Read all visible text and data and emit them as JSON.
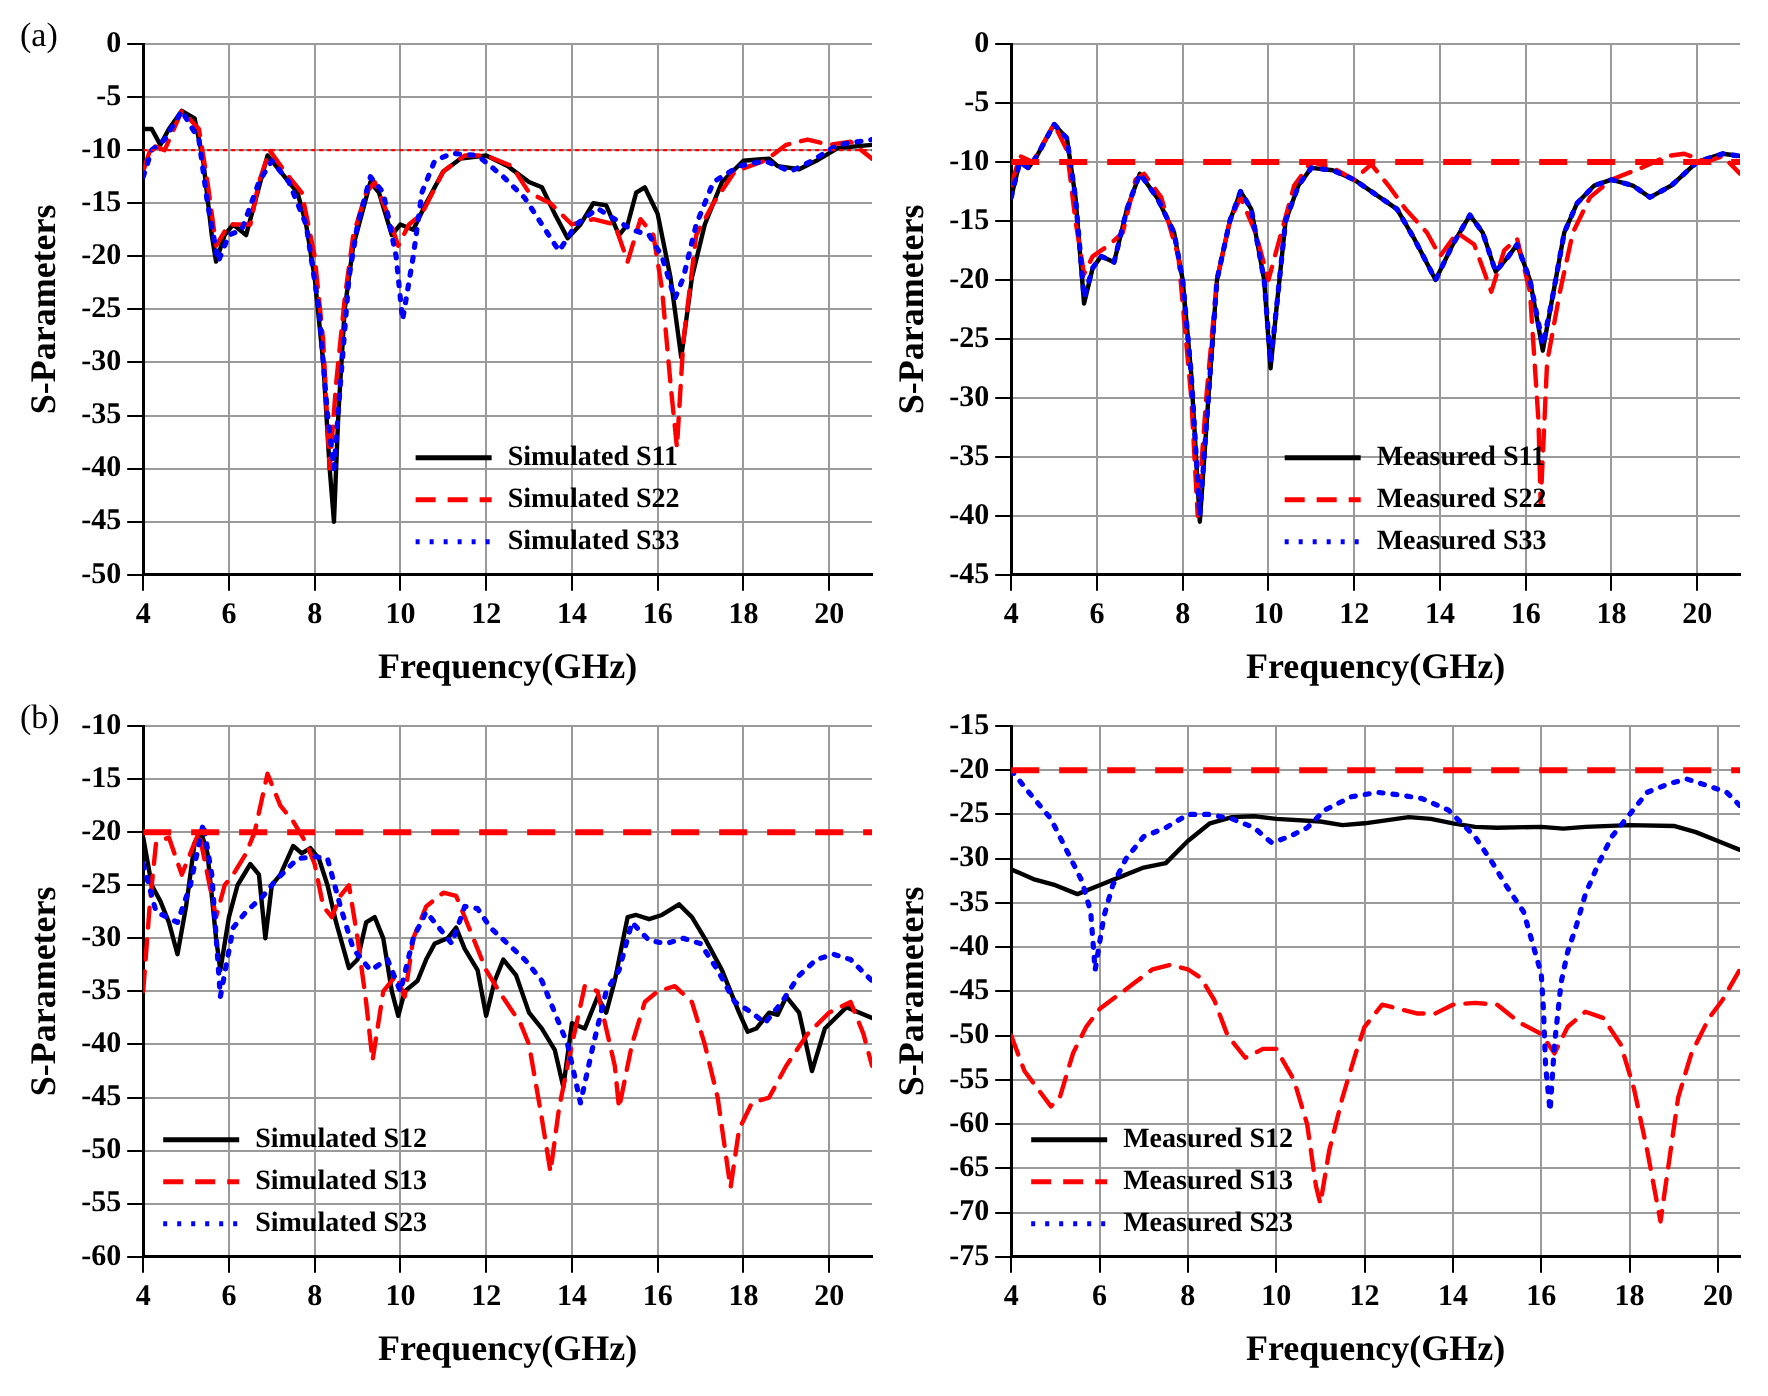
{
  "chart_data": [
    {
      "type": "line",
      "xlabel": "Frequency(GHz)",
      "ylabel": "S-Parameters",
      "annotations": [
        "(a)"
      ],
      "xlim": [
        4,
        21
      ],
      "xticks": [
        4,
        6,
        8,
        10,
        12,
        14,
        16,
        18,
        20
      ],
      "ylim": [
        -50,
        0
      ],
      "yticks": [
        -50,
        -45,
        -40,
        -35,
        -30,
        -25,
        -20,
        -15,
        -10,
        -5,
        0
      ],
      "grid": true,
      "legend": "bottom",
      "marker": "none",
      "ref_lines": [
        {
          "axis": "y",
          "value": -10,
          "color": "#ff0000",
          "line_style": "dotted"
        }
      ],
      "series": [
        {
          "name": "Simulated S11",
          "color": "#000000",
          "line_style": "solid",
          "x": [
            4,
            4.2,
            4.4,
            4.6,
            4.9,
            5.2,
            5.4,
            5.6,
            5.7,
            5.9,
            6.1,
            6.4,
            6.6,
            6.9,
            7.1,
            7.4,
            7.6,
            7.8,
            8.0,
            8.2,
            8.35,
            8.45,
            8.55,
            8.7,
            8.9,
            9.1,
            9.3,
            9.5,
            9.8,
            10.0,
            10.3,
            10.6,
            11.0,
            11.4,
            12.0,
            12.5,
            13.0,
            13.3,
            13.6,
            13.9,
            14.2,
            14.5,
            14.8,
            15.1,
            15.3,
            15.5,
            15.7,
            16.0,
            16.3,
            16.55,
            16.8,
            17.1,
            17.5,
            18.0,
            18.6,
            18.8,
            19.3,
            19.7,
            20.2,
            21
          ],
          "values": [
            -8,
            -8,
            -9.5,
            -8,
            -6.3,
            -7,
            -11,
            -18,
            -20.5,
            -18,
            -17,
            -18,
            -15,
            -10.5,
            -11.5,
            -13,
            -14,
            -17,
            -22,
            -30,
            -40,
            -45,
            -35,
            -25,
            -19,
            -16,
            -13,
            -14,
            -18,
            -17,
            -17.5,
            -15,
            -12,
            -10.8,
            -10.5,
            -11.5,
            -13,
            -13.5,
            -16,
            -18.3,
            -17,
            -15,
            -15.2,
            -18,
            -17,
            -14,
            -13.5,
            -16,
            -22,
            -29.5,
            -22,
            -17,
            -13,
            -11,
            -10.8,
            -11.5,
            -11.8,
            -11,
            -9.8,
            -9.5
          ]
        },
        {
          "name": "Simulated S22",
          "color": "#ff0000",
          "line_style": "dashed",
          "x": [
            4,
            4.2,
            4.5,
            4.9,
            5.3,
            5.5,
            5.7,
            6.0,
            6.2,
            6.5,
            6.7,
            6.95,
            7.3,
            7.7,
            8.0,
            8.2,
            8.35,
            8.5,
            8.7,
            8.9,
            9.2,
            9.4,
            9.7,
            9.95,
            10.2,
            10.5,
            11,
            11.5,
            12.0,
            12.6,
            13.0,
            13.5,
            14.0,
            14.5,
            15.0,
            15.3,
            15.6,
            15.9,
            16.1,
            16.3,
            16.45,
            16.6,
            16.9,
            17.3,
            17.8,
            18.5,
            19.0,
            19.5,
            20,
            20.5,
            21
          ],
          "values": [
            -12,
            -9.5,
            -10,
            -6.3,
            -8,
            -13,
            -19,
            -17,
            -17,
            -17,
            -13,
            -10,
            -12,
            -14,
            -20,
            -28,
            -40,
            -32,
            -24,
            -18,
            -14,
            -13,
            -16,
            -19,
            -17,
            -16,
            -12,
            -10.5,
            -10.5,
            -11.5,
            -14,
            -15,
            -17,
            -16.5,
            -17,
            -20.5,
            -16.5,
            -18,
            -23,
            -32,
            -38,
            -28,
            -18,
            -15,
            -12,
            -11,
            -9.5,
            -9,
            -9.5,
            -9.2,
            -10.8
          ]
        },
        {
          "name": "Simulated S33",
          "color": "#0000ff",
          "line_style": "dotted",
          "x": [
            4,
            4.2,
            4.5,
            4.9,
            5.3,
            5.5,
            5.75,
            6.0,
            6.3,
            6.7,
            7.0,
            7.4,
            7.8,
            8.1,
            8.3,
            8.45,
            8.6,
            8.8,
            9.0,
            9.3,
            9.6,
            9.9,
            10.05,
            10.3,
            10.5,
            10.8,
            11.2,
            11.8,
            12.4,
            12.9,
            13.3,
            13.7,
            14.1,
            14.6,
            15.0,
            15.4,
            15.8,
            16.1,
            16.4,
            16.6,
            16.9,
            17.3,
            17.9,
            18.5,
            19.1,
            19.6,
            20.2,
            21
          ],
          "values": [
            -12.5,
            -10,
            -9,
            -6.3,
            -9,
            -15,
            -20.5,
            -18,
            -17.5,
            -13,
            -11,
            -13,
            -17,
            -25,
            -35,
            -40,
            -32,
            -22,
            -17,
            -12.5,
            -14,
            -20,
            -26,
            -20,
            -14,
            -11,
            -10.3,
            -10.5,
            -12.5,
            -14.5,
            -17,
            -19.5,
            -17,
            -15.5,
            -16.5,
            -17.5,
            -18,
            -20,
            -24,
            -22,
            -17,
            -13,
            -11.5,
            -11,
            -12,
            -11,
            -9.5,
            -9
          ]
        }
      ]
    },
    {
      "type": "line",
      "xlabel": "Frequency(GHz)",
      "ylabel": "S-Parameters",
      "xlim": [
        4,
        21
      ],
      "xticks": [
        4,
        6,
        8,
        10,
        12,
        14,
        16,
        18,
        20
      ],
      "ylim": [
        -45,
        0
      ],
      "yticks": [
        -45,
        -40,
        -35,
        -30,
        -25,
        -20,
        -15,
        -10,
        -5,
        0
      ],
      "grid": true,
      "legend": "bottom",
      "marker": "none",
      "ref_lines": [
        {
          "axis": "y",
          "value": -10,
          "color": "#ff0000",
          "line_style": "dashed"
        }
      ],
      "series": [
        {
          "name": "Measured S11",
          "color": "#000000",
          "line_style": "solid",
          "x": [
            4,
            4.2,
            4.4,
            4.6,
            5.0,
            5.3,
            5.5,
            5.7,
            5.9,
            6.1,
            6.4,
            6.7,
            7.0,
            7.4,
            7.8,
            8.0,
            8.2,
            8.4,
            8.6,
            8.8,
            9.1,
            9.35,
            9.6,
            9.9,
            10.05,
            10.2,
            10.4,
            10.7,
            11.0,
            11.5,
            12.0,
            12.6,
            13.0,
            13.4,
            13.9,
            14.3,
            14.7,
            15.0,
            15.3,
            15.6,
            15.8,
            16.1,
            16.4,
            16.6,
            16.9,
            17.2,
            17.6,
            18.0,
            18.5,
            18.9,
            19.4,
            20.0,
            20.6,
            21
          ],
          "values": [
            -13,
            -10,
            -10.5,
            -9.5,
            -6.8,
            -8,
            -13,
            -22,
            -19,
            -18,
            -18.5,
            -14,
            -11,
            -13,
            -16,
            -20,
            -28,
            -40.5,
            -30,
            -20,
            -15,
            -12.5,
            -14,
            -20,
            -27.5,
            -22,
            -15,
            -12,
            -10.5,
            -10.7,
            -11.5,
            -13,
            -14,
            -16.5,
            -20,
            -17,
            -14.5,
            -16,
            -19.3,
            -18,
            -17,
            -20,
            -26,
            -22,
            -16,
            -13.5,
            -12,
            -11.5,
            -12,
            -13,
            -12,
            -10,
            -9.3,
            -9.5
          ]
        },
        {
          "name": "Measured S22",
          "color": "#ff0000",
          "line_style": "dashed",
          "x": [
            4,
            4.2,
            4.5,
            5.0,
            5.3,
            5.5,
            5.7,
            5.9,
            6.3,
            6.6,
            6.9,
            7.1,
            7.5,
            7.9,
            8.2,
            8.35,
            8.55,
            8.8,
            9.1,
            9.35,
            9.7,
            10.0,
            10.3,
            10.6,
            11.0,
            11.5,
            12.0,
            12.4,
            12.8,
            13.2,
            13.7,
            14.0,
            14.4,
            14.8,
            15.2,
            15.5,
            15.8,
            16.1,
            16.3,
            16.35,
            16.5,
            16.8,
            17.1,
            17.5,
            18.0,
            18.7,
            19.3,
            19.7,
            20.2,
            20.6,
            21
          ],
          "values": [
            -12,
            -9.5,
            -10,
            -6.8,
            -9,
            -15,
            -19.5,
            -18,
            -17,
            -16,
            -11.5,
            -11,
            -13,
            -18,
            -30,
            -40,
            -30,
            -20,
            -15,
            -13,
            -16,
            -20,
            -16,
            -12,
            -10,
            -10.5,
            -11.5,
            -10.2,
            -12,
            -14,
            -16,
            -18,
            -16,
            -17,
            -21,
            -17.5,
            -16.5,
            -21,
            -32,
            -39,
            -27,
            -21,
            -16,
            -13,
            -11.5,
            -10.5,
            -9.5,
            -9.3,
            -10,
            -9.5,
            -11
          ]
        },
        {
          "name": "Measured S33",
          "color": "#0000ff",
          "line_style": "dotted",
          "x": [
            4,
            4.2,
            4.4,
            4.6,
            5.0,
            5.3,
            5.5,
            5.7,
            5.9,
            6.1,
            6.4,
            6.7,
            7.0,
            7.4,
            7.8,
            8.0,
            8.2,
            8.4,
            8.6,
            8.8,
            9.1,
            9.35,
            9.6,
            9.9,
            10.05,
            10.2,
            10.4,
            10.7,
            11.0,
            11.5,
            12.0,
            12.6,
            13.0,
            13.4,
            13.9,
            14.3,
            14.7,
            15.0,
            15.3,
            15.6,
            15.8,
            16.1,
            16.4,
            16.6,
            16.9,
            17.2,
            17.6,
            18.0,
            18.5,
            18.9,
            19.4,
            20.0,
            20.6,
            21
          ],
          "values": [
            -13,
            -10,
            -10.5,
            -9.5,
            -6.8,
            -8,
            -13,
            -21.5,
            -19,
            -18,
            -18.5,
            -14,
            -11,
            -13,
            -16,
            -20,
            -28,
            -40,
            -30,
            -20,
            -15,
            -12.5,
            -14,
            -20,
            -27,
            -22,
            -15,
            -12,
            -10.5,
            -10.7,
            -11.5,
            -13,
            -14,
            -16.5,
            -20,
            -17,
            -14.5,
            -16,
            -19.3,
            -18,
            -17,
            -20,
            -25.5,
            -22,
            -16,
            -13.5,
            -12,
            -11.5,
            -12,
            -13,
            -12,
            -10,
            -9.3,
            -9.5
          ]
        }
      ]
    },
    {
      "type": "line",
      "xlabel": "Frequency(GHz)",
      "ylabel": "S-Parameters",
      "annotations": [
        "(b)"
      ],
      "xlim": [
        4,
        21
      ],
      "xticks": [
        4,
        6,
        8,
        10,
        12,
        14,
        16,
        18,
        20
      ],
      "ylim": [
        -60,
        -10
      ],
      "yticks": [
        -60,
        -55,
        -50,
        -45,
        -40,
        -35,
        -30,
        -25,
        -20,
        -15,
        -10
      ],
      "grid": true,
      "legend": "bottom left",
      "marker": "none",
      "ref_lines": [
        {
          "axis": "y",
          "value": -20,
          "color": "#ff0000",
          "line_style": "dashed"
        }
      ],
      "series": [
        {
          "name": "Simulated S12",
          "color": "#000000",
          "line_style": "solid",
          "x": [
            4,
            4.2,
            4.4,
            4.6,
            4.8,
            5.0,
            5.2,
            5.35,
            5.5,
            5.7,
            5.8,
            6.0,
            6.2,
            6.5,
            6.7,
            6.85,
            7.0,
            7.2,
            7.5,
            7.7,
            7.9,
            8.1,
            8.3,
            8.5,
            8.8,
            9.0,
            9.2,
            9.4,
            9.6,
            9.8,
            9.95,
            10.1,
            10.4,
            10.6,
            10.8,
            11.1,
            11.3,
            11.5,
            11.8,
            12.0,
            12.2,
            12.4,
            12.7,
            13.0,
            13.3,
            13.6,
            13.8,
            14.0,
            14.3,
            14.6,
            14.8,
            15.0,
            15.3,
            15.5,
            15.8,
            16.1,
            16.5,
            16.8,
            17.1,
            17.5,
            17.9,
            18.1,
            18.3,
            18.6,
            18.8,
            19.0,
            19.3,
            19.6,
            19.9,
            20.4,
            21
          ],
          "values": [
            -20.5,
            -25,
            -26.5,
            -28.5,
            -31.5,
            -27,
            -21,
            -20,
            -22,
            -30,
            -33,
            -28,
            -25,
            -23,
            -24,
            -30,
            -25,
            -24,
            -21.3,
            -22,
            -21.5,
            -22.5,
            -25,
            -28.5,
            -32.8,
            -32,
            -28.5,
            -28,
            -30,
            -35,
            -37.3,
            -35,
            -34,
            -32,
            -30.5,
            -30,
            -29,
            -31,
            -33,
            -37.3,
            -34,
            -32,
            -33.5,
            -37,
            -38.5,
            -40.5,
            -44,
            -38,
            -38.5,
            -35.5,
            -37,
            -34,
            -28,
            -27.8,
            -28.2,
            -27.8,
            -26.8,
            -28,
            -30,
            -33,
            -37,
            -38.8,
            -38.5,
            -37,
            -37.2,
            -35.5,
            -37,
            -42.5,
            -38.5,
            -36.5,
            -37.5
          ]
        },
        {
          "name": "Simulated S13",
          "color": "#ff0000",
          "line_style": "dashed",
          "x": [
            4,
            4.15,
            4.3,
            4.6,
            4.9,
            5.1,
            5.3,
            5.5,
            5.7,
            5.9,
            6.1,
            6.4,
            6.6,
            6.9,
            7.2,
            7.5,
            7.8,
            8.0,
            8.2,
            8.4,
            8.6,
            8.8,
            9.0,
            9.2,
            9.35,
            9.6,
            9.9,
            10.1,
            10.3,
            10.6,
            11.0,
            11.3,
            11.6,
            12.0,
            12.3,
            12.8,
            13.0,
            13.3,
            13.5,
            13.7,
            14.0,
            14.3,
            14.6,
            15.0,
            15.1,
            15.4,
            15.7,
            16.0,
            16.4,
            16.8,
            17.1,
            17.4,
            17.7,
            17.9,
            18.2,
            18.6,
            19.0,
            19.5,
            20.0,
            20.5,
            20.8,
            21
          ],
          "values": [
            -35,
            -27,
            -21,
            -20.5,
            -24,
            -22,
            -20,
            -24,
            -28,
            -25,
            -24,
            -22,
            -20,
            -14.5,
            -17.5,
            -19,
            -21,
            -23,
            -27,
            -28,
            -26,
            -25,
            -30,
            -36,
            -41.5,
            -35,
            -33.5,
            -35.5,
            -30,
            -27,
            -25.7,
            -26,
            -29,
            -33,
            -35,
            -38,
            -40,
            -47,
            -52,
            -46,
            -40,
            -34.5,
            -35,
            -42,
            -46,
            -40,
            -36,
            -35,
            -34.5,
            -36,
            -40,
            -45,
            -53.5,
            -48,
            -45.5,
            -45,
            -42,
            -39,
            -37,
            -36,
            -39,
            -42
          ]
        },
        {
          "name": "Simulated S23",
          "color": "#0000ff",
          "line_style": "dotted",
          "x": [
            4,
            4.3,
            4.8,
            5.1,
            5.4,
            5.6,
            5.8,
            6.1,
            6.4,
            6.8,
            7.1,
            7.6,
            8.0,
            8.3,
            8.6,
            8.9,
            9.3,
            9.7,
            10.0,
            10.3,
            10.6,
            10.9,
            11.2,
            11.5,
            11.8,
            12.1,
            12.5,
            12.9,
            13.3,
            13.6,
            13.9,
            14.2,
            14.5,
            14.8,
            15.1,
            15.4,
            15.8,
            16.2,
            16.6,
            17.0,
            17.4,
            17.8,
            18.2,
            18.5,
            18.9,
            19.3,
            19.7,
            20.1,
            20.5,
            21
          ],
          "values": [
            -23,
            -27.5,
            -28.5,
            -25,
            -19.2,
            -24,
            -35.5,
            -29,
            -27.5,
            -26,
            -24.5,
            -22.5,
            -22.3,
            -22.5,
            -27,
            -31,
            -33,
            -32,
            -35,
            -30,
            -27.5,
            -29,
            -30.5,
            -27,
            -27.2,
            -29,
            -30.5,
            -32,
            -34,
            -37,
            -40,
            -45.5,
            -40,
            -35,
            -33,
            -28.5,
            -30.2,
            -30.5,
            -30,
            -30.5,
            -33,
            -36,
            -37,
            -38,
            -36,
            -33.5,
            -32,
            -31.5,
            -32,
            -34
          ]
        }
      ]
    },
    {
      "type": "line",
      "xlabel": "Frequency(GHz)",
      "ylabel": "S-Parameters",
      "xlim": [
        4,
        20.5
      ],
      "xticks": [
        4,
        6,
        8,
        10,
        12,
        14,
        16,
        18,
        20
      ],
      "ylim": [
        -75,
        -15
      ],
      "yticks": [
        -75,
        -70,
        -65,
        -60,
        -55,
        -50,
        -45,
        -40,
        -35,
        -30,
        -25,
        -20,
        -15
      ],
      "grid": true,
      "legend": "bottom left",
      "marker": "none",
      "ref_lines": [
        {
          "axis": "y",
          "value": -20,
          "color": "#ff0000",
          "line_style": "dashed"
        }
      ],
      "series": [
        {
          "name": "Measured S12",
          "color": "#000000",
          "line_style": "solid",
          "x": [
            4,
            4.5,
            5.0,
            5.5,
            6.0,
            6.5,
            7.0,
            7.5,
            8.0,
            8.5,
            9.0,
            9.5,
            10.0,
            11.0,
            11.5,
            12.0,
            13.0,
            13.5,
            14.0,
            14.5,
            15.0,
            16.0,
            16.5,
            17.0,
            18.0,
            19.0,
            19.5,
            20.0,
            20.5
          ],
          "values": [
            -31.2,
            -32.3,
            -33,
            -34,
            -33,
            -32,
            -31,
            -30.5,
            -28,
            -26,
            -25.3,
            -25.2,
            -25.5,
            -25.8,
            -26.2,
            -26,
            -25.3,
            -25.5,
            -26,
            -26.4,
            -26.5,
            -26.4,
            -26.6,
            -26.4,
            -26.2,
            -26.3,
            -27,
            -28,
            -29
          ]
        },
        {
          "name": "Measured S13",
          "color": "#ff0000",
          "line_style": "dashed",
          "x": [
            4,
            4.3,
            4.6,
            4.9,
            5.1,
            5.4,
            5.7,
            6.0,
            6.4,
            6.8,
            7.2,
            7.6,
            8.0,
            8.3,
            8.6,
            8.9,
            9.3,
            9.7,
            10.0,
            10.4,
            10.7,
            10.9,
            11.0,
            11.2,
            11.5,
            11.8,
            12.0,
            12.4,
            12.8,
            13.2,
            13.6,
            14.0,
            14.5,
            15.0,
            15.5,
            16.0,
            16.3,
            16.6,
            17.0,
            17.4,
            17.8,
            18.1,
            18.4,
            18.7,
            18.9,
            19.1,
            19.4,
            19.8,
            20.1,
            20.5
          ],
          "values": [
            -50,
            -54,
            -56,
            -58,
            -57,
            -52,
            -49,
            -47,
            -45.5,
            -44,
            -42.5,
            -42,
            -42.5,
            -43.5,
            -46,
            -50,
            -52.5,
            -51.5,
            -51.5,
            -55,
            -60,
            -67,
            -69,
            -63,
            -57,
            -52,
            -49,
            -46.5,
            -47,
            -47.5,
            -47.5,
            -46.5,
            -46.3,
            -46.5,
            -48.5,
            -49.8,
            -52,
            -49,
            -47.3,
            -48,
            -51,
            -56,
            -63,
            -71,
            -64,
            -57,
            -52,
            -48,
            -46,
            -42.5
          ]
        },
        {
          "name": "Measured S23",
          "color": "#0000ff",
          "line_style": "dotted",
          "x": [
            4,
            4.4,
            4.9,
            5.2,
            5.6,
            5.8,
            5.9,
            6.1,
            6.3,
            6.6,
            7.0,
            7.5,
            8.0,
            8.5,
            9.0,
            9.5,
            9.9,
            10.3,
            10.7,
            11.1,
            11.7,
            12.3,
            12.8,
            13.3,
            13.9,
            14.2,
            14.5,
            14.9,
            15.2,
            15.6,
            15.8,
            16.0,
            16.05,
            16.1,
            16.2,
            16.3,
            16.45,
            16.6,
            16.8,
            17.0,
            17.3,
            17.6,
            18.0,
            18.4,
            18.9,
            19.3,
            19.8,
            20.2,
            20.5
          ],
          "values": [
            -20,
            -22.5,
            -25.5,
            -28.5,
            -32.5,
            -36,
            -42.6,
            -36.5,
            -33,
            -30,
            -27.5,
            -26.5,
            -25,
            -25,
            -25.5,
            -26.5,
            -28.2,
            -27.5,
            -26.5,
            -24.5,
            -23,
            -22.5,
            -22.8,
            -23.2,
            -24.5,
            -26,
            -27.5,
            -30.5,
            -33,
            -36,
            -39.5,
            -43,
            -47,
            -53.5,
            -58.5,
            -51,
            -44,
            -40.5,
            -37.5,
            -34,
            -30.5,
            -27.5,
            -25,
            -22.5,
            -21.5,
            -21,
            -21.8,
            -22.5,
            -24
          ]
        }
      ]
    }
  ]
}
